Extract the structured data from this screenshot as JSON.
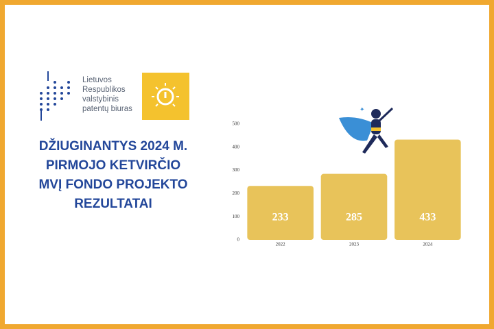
{
  "logo": {
    "lines": [
      "Lietuvos",
      "Respublikos",
      "valstybinis",
      "patentų biuras"
    ]
  },
  "headline": {
    "lines": [
      "DŽIUGINANTYS 2024 M.",
      "PIRMOJO KETVIRČIO",
      "MVĮ FONDO PROJEKTO",
      "REZULTATAI"
    ]
  },
  "chart_data": {
    "type": "bar",
    "categories": [
      "2022",
      "2023",
      "2024"
    ],
    "values": [
      233,
      285,
      433
    ],
    "color": "#e8c35a",
    "label_color": "#ffffff",
    "ylim": [
      0,
      500
    ],
    "yticks": [
      0,
      100,
      200,
      300,
      400,
      500
    ],
    "grid": false
  }
}
